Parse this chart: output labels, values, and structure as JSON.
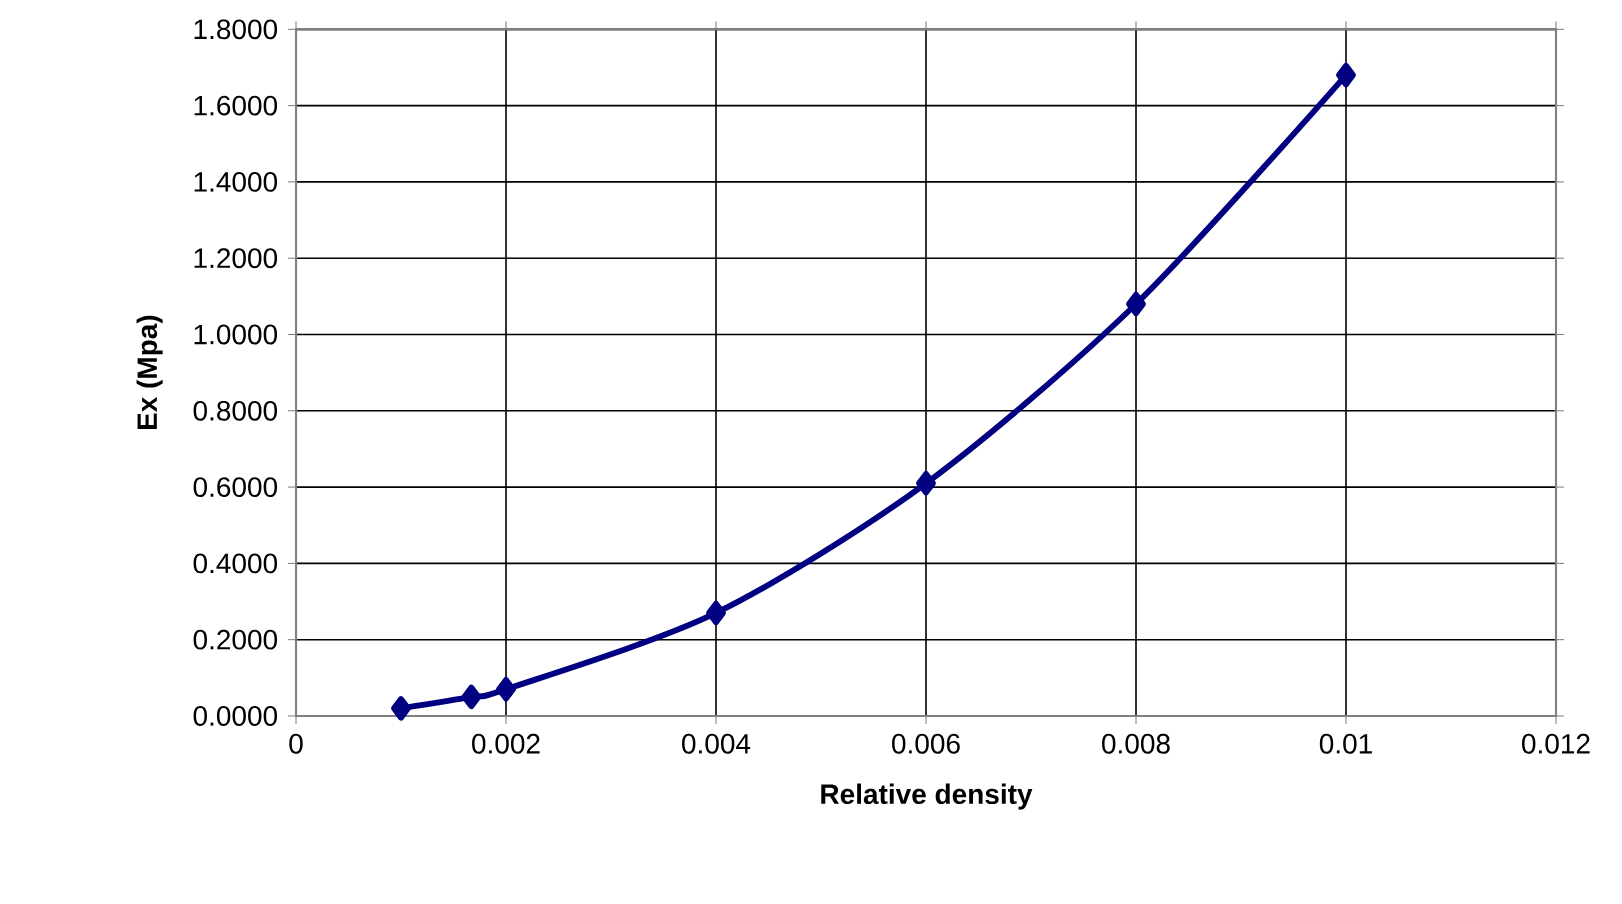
{
  "chart_data": {
    "type": "line",
    "xlabel": "Relative density",
    "ylabel": "Ex (Mpa)",
    "x": [
      0.001,
      0.00167,
      0.002,
      0.004,
      0.006,
      0.008,
      0.01
    ],
    "series": [
      {
        "color": "#000080",
        "values": [
          0.02,
          0.05,
          0.07,
          0.27,
          0.61,
          1.08,
          1.68
        ]
      }
    ],
    "xlim": [
      0,
      0.012
    ],
    "xticks": [
      0,
      0.002,
      0.004,
      0.006,
      0.008,
      0.01,
      0.012
    ],
    "ylim": [
      0,
      1.8
    ],
    "yticks": [
      {
        "value": 0,
        "label": "0.0000"
      },
      {
        "value": 0.2,
        "label": "0.2000"
      },
      {
        "value": 0.4,
        "label": "0.4000"
      },
      {
        "value": 0.6,
        "label": "0.6000"
      },
      {
        "value": 0.8,
        "label": "0.8000"
      },
      {
        "value": 1.0,
        "label": "1.0000"
      },
      {
        "value": 1.2,
        "label": "1.2000"
      },
      {
        "value": 1.4,
        "label": "1.4000"
      },
      {
        "value": 1.6,
        "label": "1.6000"
      },
      {
        "value": 1.8,
        "label": "1.8000"
      }
    ],
    "grid": true,
    "marker": "diamond",
    "line_style": "solid"
  }
}
